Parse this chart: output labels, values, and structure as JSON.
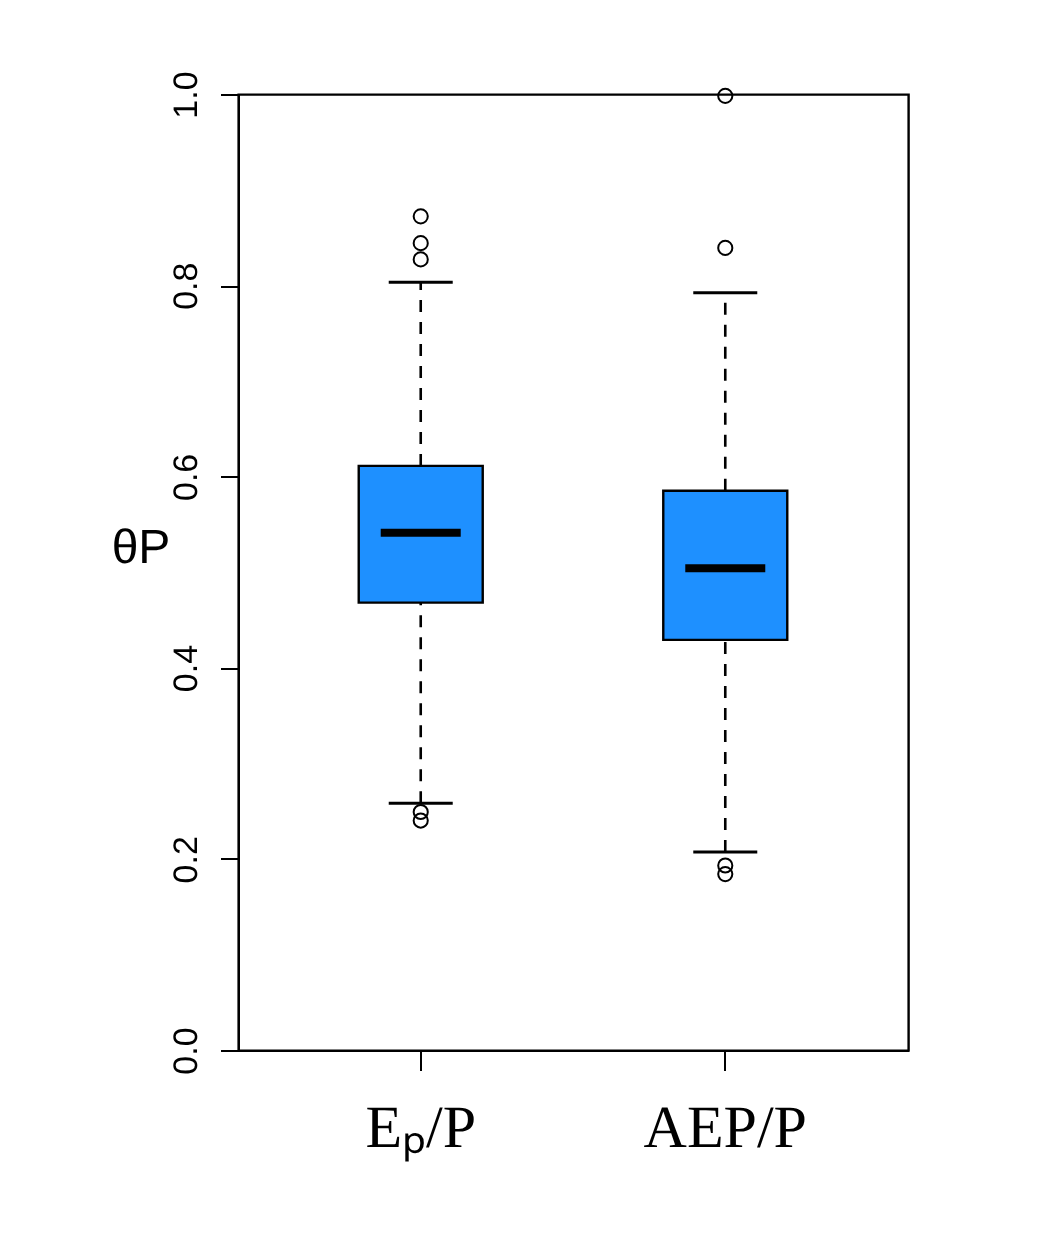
{
  "chart_data": {
    "type": "box",
    "ylabel": "θP",
    "categories": [
      "Eₚ/P",
      "AEP/P"
    ],
    "color": "#1e90ff",
    "boxes": [
      {
        "low": 0.258,
        "q1": 0.468,
        "median": 0.541,
        "q3": 0.611,
        "high": 0.803,
        "outliers": [
          0.872,
          0.844,
          0.827,
          0.249,
          0.24
        ]
      },
      {
        "low": 0.207,
        "q1": 0.429,
        "median": 0.504,
        "q3": 0.585,
        "high": 0.792,
        "outliers": [
          0.998,
          0.839,
          0.193,
          0.184
        ]
      }
    ],
    "ylim": [
      0.0,
      1.0
    ],
    "yticks": [
      {
        "value": 0.0,
        "label": "0.0"
      },
      {
        "value": 0.2,
        "label": "0.2"
      },
      {
        "value": 0.4,
        "label": "0.4"
      },
      {
        "value": 0.6,
        "label": "0.6"
      },
      {
        "value": 0.8,
        "label": "0.8"
      },
      {
        "value": 1.0,
        "label": "1.0"
      }
    ],
    "grid": false
  }
}
